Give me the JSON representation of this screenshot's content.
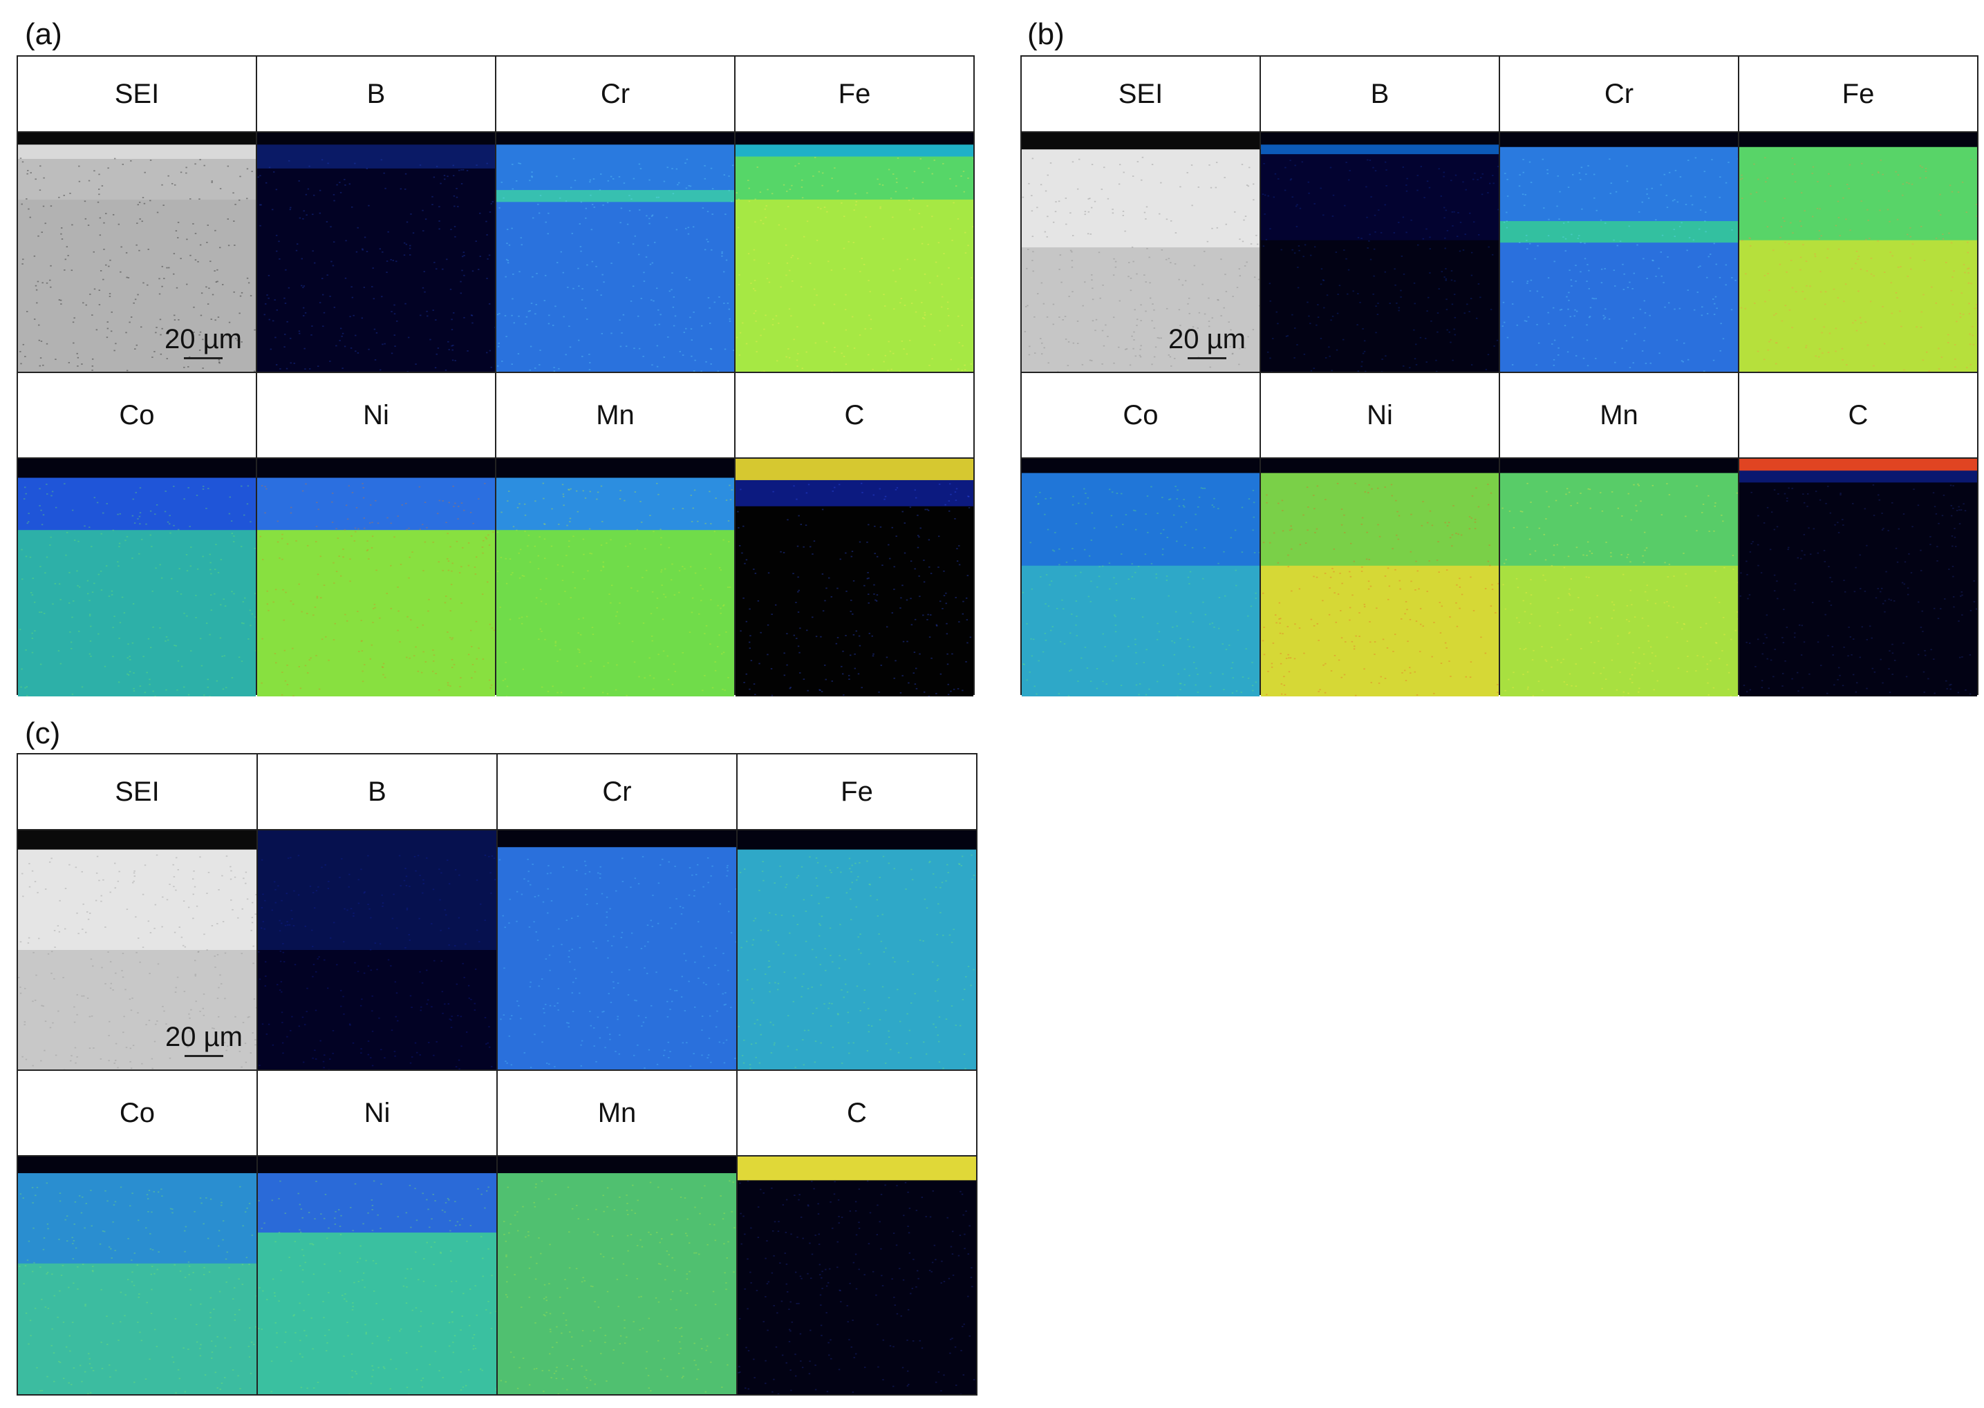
{
  "panels": [
    {
      "label": "(a)",
      "headers": [
        "SEI",
        "B",
        "Cr",
        "Fe",
        "Co",
        "Ni",
        "Mn",
        "C"
      ],
      "scale": "20 µm"
    },
    {
      "label": "(b)",
      "headers": [
        "SEI",
        "B",
        "Cr",
        "Fe",
        "Co",
        "Ni",
        "Mn",
        "C"
      ],
      "scale": "20 µm"
    },
    {
      "label": "(c)",
      "headers": [
        "SEI",
        "B",
        "Cr",
        "Fe",
        "Co",
        "Ni",
        "Mn",
        "C"
      ],
      "scale": "20 µm"
    }
  ]
}
